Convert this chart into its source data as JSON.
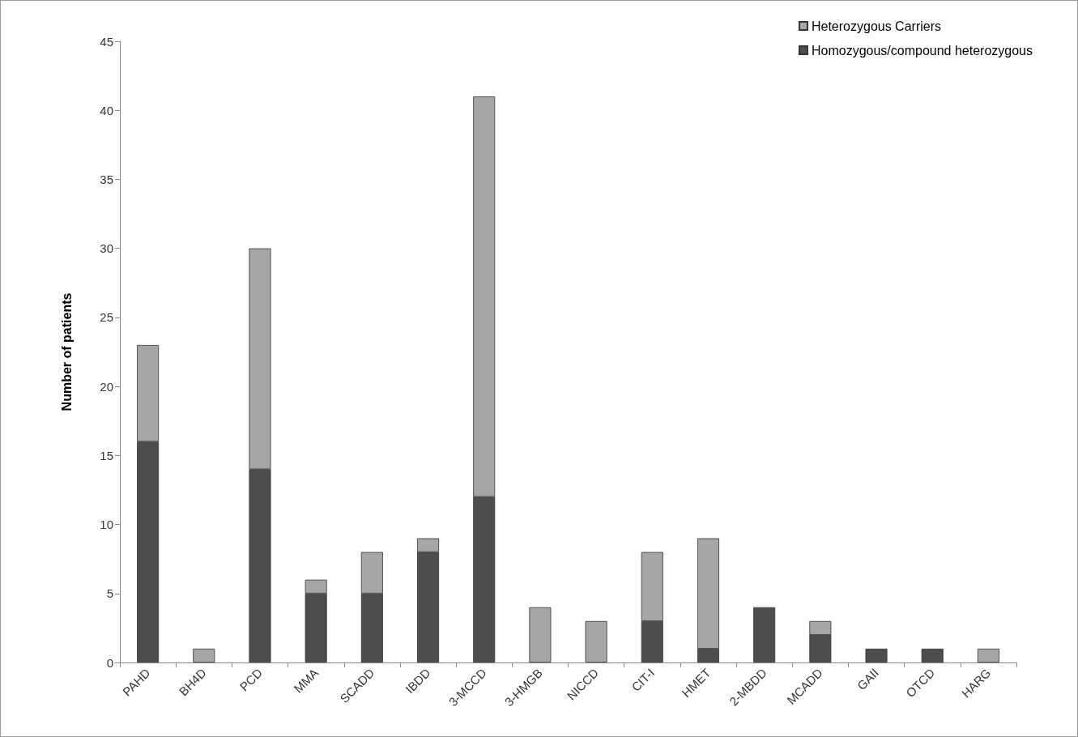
{
  "chart_data": {
    "type": "bar",
    "ylabel": "Number of patients",
    "categories": [
      "PAHD",
      "BH4D",
      "PCD",
      "MMA",
      "SCADD",
      "IBDD",
      "3-MCCD",
      "3-HMGB",
      "NICCD",
      "CIT-I",
      "HMET",
      "2-MBDD",
      "MCADD",
      "GAII",
      "OTCD",
      "HARG"
    ],
    "series": [
      {
        "name": "Homozygous/compound heterozygous",
        "color": "#4d4d4d",
        "values": [
          16,
          null,
          14,
          5,
          5,
          8,
          12,
          null,
          null,
          3,
          1,
          4,
          2,
          1,
          1,
          null
        ]
      },
      {
        "name": "Heterozygous Carriers",
        "color": "#a6a6a6",
        "values": [
          7,
          1,
          16,
          1,
          3,
          1,
          29,
          4,
          3,
          5,
          8,
          null,
          1,
          null,
          null,
          1
        ]
      }
    ],
    "stacked": true,
    "ylim": [
      0,
      45
    ],
    "yticks": [
      0,
      5,
      10,
      15,
      20,
      25,
      30,
      35,
      40,
      45
    ],
    "grid": false,
    "legend": "top right"
  }
}
